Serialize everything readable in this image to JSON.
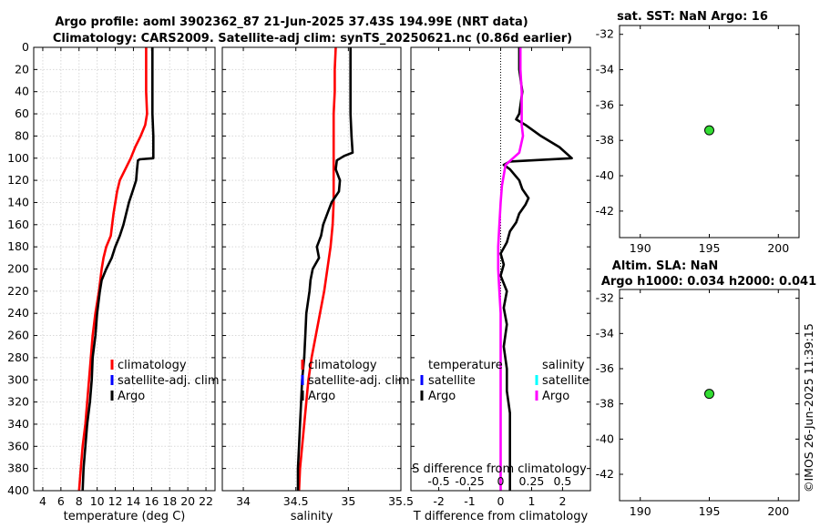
{
  "title": {
    "line1": "Argo profile: aoml 3902362_87 21-Jun-2025 37.43S 194.99E (NRT data)",
    "line2": "Climatology: CARS2009. Satellite-adj clim: synTS_20250621.nc (0.86d earlier)"
  },
  "timestamp": "©IMOS 26-Jun-2025 11:39:15",
  "colors": {
    "climatology": "#ff0000",
    "satellite_adj": "#0000ff",
    "argo": "#000000",
    "satellite_s": "#00ffff",
    "argo_s_diff": "#ff00ff",
    "map_dot": "#33dd33"
  },
  "chart_data": [
    {
      "type": "line",
      "xlabel": "temperature (deg C)",
      "xlim": [
        3,
        23
      ],
      "xticks": [
        "4",
        "6",
        "8",
        "10",
        "12",
        "14",
        "16",
        "18",
        "20",
        "22"
      ],
      "ylim": [
        0,
        400
      ],
      "yticks": [
        "0",
        "20",
        "40",
        "60",
        "80",
        "100",
        "120",
        "140",
        "160",
        "180",
        "200",
        "220",
        "240",
        "260",
        "280",
        "300",
        "320",
        "340",
        "360",
        "380",
        "400"
      ],
      "grid": true,
      "legend_position": "lower-right",
      "legend": [
        "climatology",
        "satellite-adj. clim",
        "Argo"
      ],
      "series": [
        {
          "name": "climatology",
          "color": "#ff0000",
          "points": [
            [
              15.4,
              0
            ],
            [
              15.4,
              20
            ],
            [
              15.4,
              40
            ],
            [
              15.5,
              60
            ],
            [
              15.3,
              70
            ],
            [
              14.8,
              80
            ],
            [
              14.2,
              90
            ],
            [
              13.7,
              100
            ],
            [
              13.1,
              110
            ],
            [
              12.5,
              120
            ],
            [
              12.2,
              130
            ],
            [
              11.8,
              150
            ],
            [
              11.5,
              170
            ],
            [
              11.0,
              180
            ],
            [
              10.7,
              190
            ],
            [
              10.5,
              200
            ],
            [
              10.2,
              220
            ],
            [
              9.8,
              240
            ],
            [
              9.5,
              260
            ],
            [
              9.3,
              280
            ],
            [
              9.1,
              300
            ],
            [
              8.9,
              320
            ],
            [
              8.7,
              340
            ],
            [
              8.4,
              360
            ],
            [
              8.2,
              380
            ],
            [
              8.0,
              400
            ]
          ]
        },
        {
          "name": "Argo",
          "color": "#000000",
          "points": [
            [
              16.1,
              0
            ],
            [
              16.1,
              20
            ],
            [
              16.1,
              40
            ],
            [
              16.1,
              60
            ],
            [
              16.2,
              80
            ],
            [
              16.2,
              100
            ],
            [
              14.7,
              101
            ],
            [
              14.5,
              102
            ],
            [
              14.4,
              110
            ],
            [
              14.3,
              120
            ],
            [
              13.9,
              130
            ],
            [
              13.5,
              140
            ],
            [
              13.2,
              150
            ],
            [
              12.9,
              160
            ],
            [
              12.5,
              170
            ],
            [
              12.0,
              180
            ],
            [
              11.6,
              190
            ],
            [
              11.0,
              200
            ],
            [
              10.5,
              210
            ],
            [
              10.3,
              220
            ],
            [
              10.0,
              240
            ],
            [
              9.8,
              260
            ],
            [
              9.5,
              280
            ],
            [
              9.4,
              300
            ],
            [
              9.2,
              320
            ],
            [
              8.9,
              340
            ],
            [
              8.7,
              360
            ],
            [
              8.5,
              380
            ],
            [
              8.4,
              400
            ]
          ]
        }
      ]
    },
    {
      "type": "line",
      "xlabel": "salinity",
      "xlim": [
        33.8,
        35.5
      ],
      "xticks": [
        "34",
        "34.5",
        "35",
        "35.5"
      ],
      "ylim": [
        0,
        400
      ],
      "grid": true,
      "legend_position": "lower-right",
      "legend": [
        "climatology",
        "satellite-adj. clim",
        "Argo"
      ],
      "series": [
        {
          "name": "climatology",
          "color": "#ff0000",
          "points": [
            [
              34.88,
              0
            ],
            [
              34.87,
              20
            ],
            [
              34.87,
              40
            ],
            [
              34.86,
              60
            ],
            [
              34.86,
              80
            ],
            [
              34.86,
              100
            ],
            [
              34.86,
              120
            ],
            [
              34.86,
              140
            ],
            [
              34.85,
              160
            ],
            [
              34.83,
              180
            ],
            [
              34.8,
              200
            ],
            [
              34.77,
              220
            ],
            [
              34.73,
              240
            ],
            [
              34.69,
              260
            ],
            [
              34.65,
              280
            ],
            [
              34.62,
              300
            ],
            [
              34.6,
              320
            ],
            [
              34.58,
              340
            ],
            [
              34.56,
              360
            ],
            [
              34.54,
              380
            ],
            [
              34.53,
              400
            ]
          ]
        },
        {
          "name": "Argo",
          "color": "#000000",
          "points": [
            [
              35.02,
              0
            ],
            [
              35.02,
              20
            ],
            [
              35.02,
              40
            ],
            [
              35.02,
              60
            ],
            [
              35.03,
              80
            ],
            [
              35.04,
              95
            ],
            [
              34.96,
              98
            ],
            [
              34.89,
              102
            ],
            [
              34.88,
              110
            ],
            [
              34.92,
              120
            ],
            [
              34.91,
              130
            ],
            [
              34.84,
              140
            ],
            [
              34.8,
              150
            ],
            [
              34.76,
              160
            ],
            [
              34.74,
              170
            ],
            [
              34.7,
              180
            ],
            [
              34.72,
              190
            ],
            [
              34.66,
              200
            ],
            [
              34.64,
              210
            ],
            [
              34.63,
              220
            ],
            [
              34.6,
              240
            ],
            [
              34.59,
              260
            ],
            [
              34.58,
              280
            ],
            [
              34.56,
              300
            ],
            [
              34.55,
              320
            ],
            [
              34.54,
              340
            ],
            [
              34.53,
              360
            ],
            [
              34.52,
              380
            ],
            [
              34.52,
              400
            ]
          ]
        }
      ]
    },
    {
      "type": "line",
      "xlabel": "T difference from climatology",
      "xlabel_top": "S difference from climatology",
      "xlim": [
        -2.9,
        2.9
      ],
      "xticks": [
        "-2",
        "-1",
        "0",
        "1",
        "2"
      ],
      "xlim_top": [
        -0.725,
        0.725
      ],
      "xticks_top": [
        "-0.5",
        "-0.25",
        "0",
        "0.25",
        "0.5"
      ],
      "ylim": [
        0,
        400
      ],
      "zero_line": "dotted",
      "legend": {
        "temperature": {
          "title": "temperature",
          "items": [
            "satellite",
            "Argo"
          ]
        },
        "salinity": {
          "title": "salinity",
          "items": [
            "satellite",
            "Argo"
          ]
        }
      },
      "series": [
        {
          "name": "Argo",
          "variable": "temperature",
          "color": "#000000",
          "points": [
            [
              0.6,
              0
            ],
            [
              0.6,
              20
            ],
            [
              0.7,
              40
            ],
            [
              0.6,
              60
            ],
            [
              0.5,
              65
            ],
            [
              0.8,
              70
            ],
            [
              1.3,
              80
            ],
            [
              1.9,
              90
            ],
            [
              2.3,
              100
            ],
            [
              0.3,
              103
            ],
            [
              0.1,
              106
            ],
            [
              0.3,
              110
            ],
            [
              0.6,
              120
            ],
            [
              0.7,
              128
            ],
            [
              0.9,
              136
            ],
            [
              0.8,
              142
            ],
            [
              0.6,
              150
            ],
            [
              0.5,
              158
            ],
            [
              0.3,
              166
            ],
            [
              0.2,
              176
            ],
            [
              0.0,
              186
            ],
            [
              0.1,
              196
            ],
            [
              0.0,
              206
            ],
            [
              0.2,
              220
            ],
            [
              0.1,
              235
            ],
            [
              0.2,
              250
            ],
            [
              0.1,
              270
            ],
            [
              0.2,
              290
            ],
            [
              0.2,
              310
            ],
            [
              0.3,
              330
            ],
            [
              0.3,
              350
            ],
            [
              0.3,
              370
            ],
            [
              0.3,
              400
            ]
          ]
        },
        {
          "name": "Argo",
          "variable": "salinity",
          "color": "#ff00ff",
          "points": [
            [
              0.16,
              0
            ],
            [
              0.16,
              20
            ],
            [
              0.17,
              40
            ],
            [
              0.17,
              60
            ],
            [
              0.17,
              70
            ],
            [
              0.18,
              80
            ],
            [
              0.15,
              95
            ],
            [
              0.08,
              102
            ],
            [
              0.04,
              106
            ],
            [
              0.03,
              112
            ],
            [
              0.01,
              125
            ],
            [
              0.0,
              140
            ],
            [
              -0.01,
              160
            ],
            [
              -0.02,
              180
            ],
            [
              -0.02,
              200
            ],
            [
              -0.01,
              220
            ],
            [
              0.0,
              240
            ],
            [
              0.0,
              260
            ],
            [
              0.0,
              280
            ],
            [
              0.0,
              300
            ],
            [
              0.0,
              320
            ],
            [
              0.0,
              340
            ],
            [
              0.0,
              360
            ],
            [
              0.0,
              380
            ],
            [
              0.0,
              400
            ]
          ]
        }
      ]
    },
    {
      "type": "scatter",
      "title": "sat. SST: NaN Argo: 16",
      "xlim": [
        188.5,
        201.5
      ],
      "xticks": [
        "190",
        "195",
        "200"
      ],
      "ylim": [
        -43.5,
        -31.5
      ],
      "yticks": [
        "-32",
        "-34",
        "-36",
        "-38",
        "-40",
        "-42"
      ],
      "points": [
        [
          195,
          -37.43
        ]
      ]
    },
    {
      "type": "scatter",
      "title": "Altim. SLA: NaN",
      "title2": "Argo h1000: 0.034 h2000: 0.041",
      "xlim": [
        188.5,
        201.5
      ],
      "xticks": [
        "190",
        "195",
        "200"
      ],
      "ylim": [
        -43.5,
        -31.5
      ],
      "yticks": [
        "-32",
        "-34",
        "-36",
        "-38",
        "-40",
        "-42"
      ],
      "points": [
        [
          195,
          -37.43
        ]
      ]
    }
  ]
}
